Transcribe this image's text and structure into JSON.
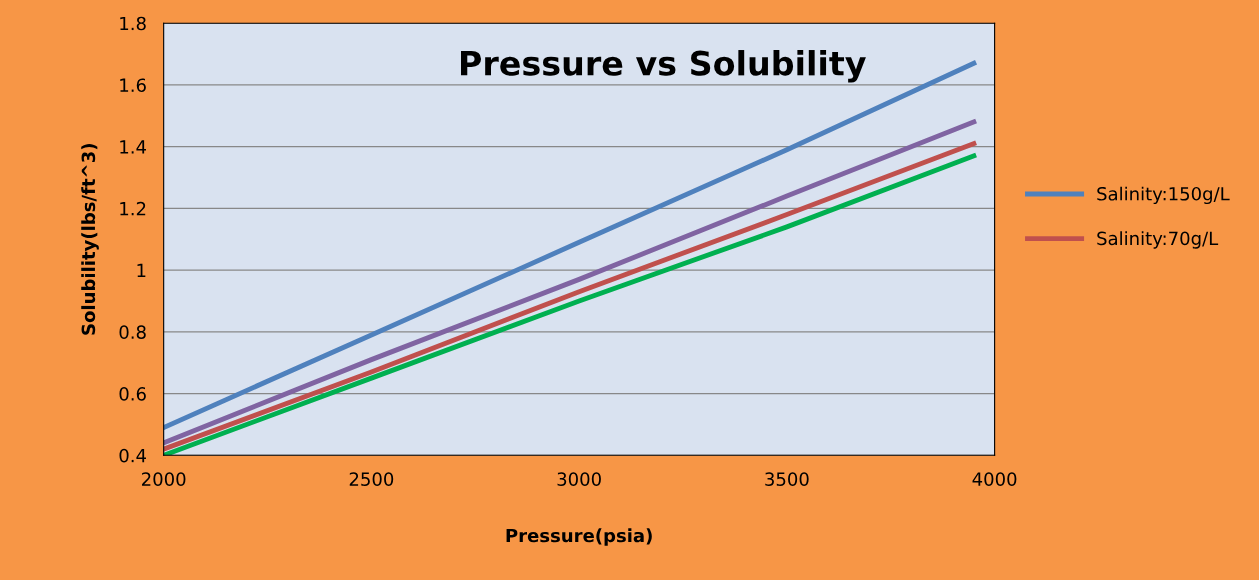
{
  "chart_data": {
    "type": "line",
    "title": "Pressure vs Solubility",
    "xlabel": "Pressure(psia)",
    "ylabel": "Solubility(lbs/ft^3)",
    "x": [
      2000,
      2500,
      3000,
      3500,
      3950
    ],
    "series": [
      {
        "name": "Salinity:150g/L",
        "color": "#4f81bd",
        "values": [
          0.49,
          0.79,
          1.09,
          1.39,
          1.67
        ]
      },
      {
        "color": "#8064a2",
        "values": [
          0.44,
          0.71,
          0.97,
          1.24,
          1.48
        ]
      },
      {
        "name": "Salinity:70g/L",
        "color": "#c0504d",
        "values": [
          0.42,
          0.67,
          0.93,
          1.18,
          1.41
        ]
      },
      {
        "color": "#00b050",
        "values": [
          0.4,
          0.65,
          0.9,
          1.14,
          1.37
        ]
      }
    ],
    "xlim": [
      2000,
      4000
    ],
    "xticks": [
      2000,
      2500,
      3000,
      3500,
      4000
    ],
    "ylim": [
      0.4,
      1.8
    ],
    "yticks": [
      0.4,
      0.6,
      0.8,
      1,
      1.2,
      1.4,
      1.6,
      1.8
    ],
    "grid": "y",
    "legend": "right",
    "marker": "none",
    "line_style": "solid"
  }
}
